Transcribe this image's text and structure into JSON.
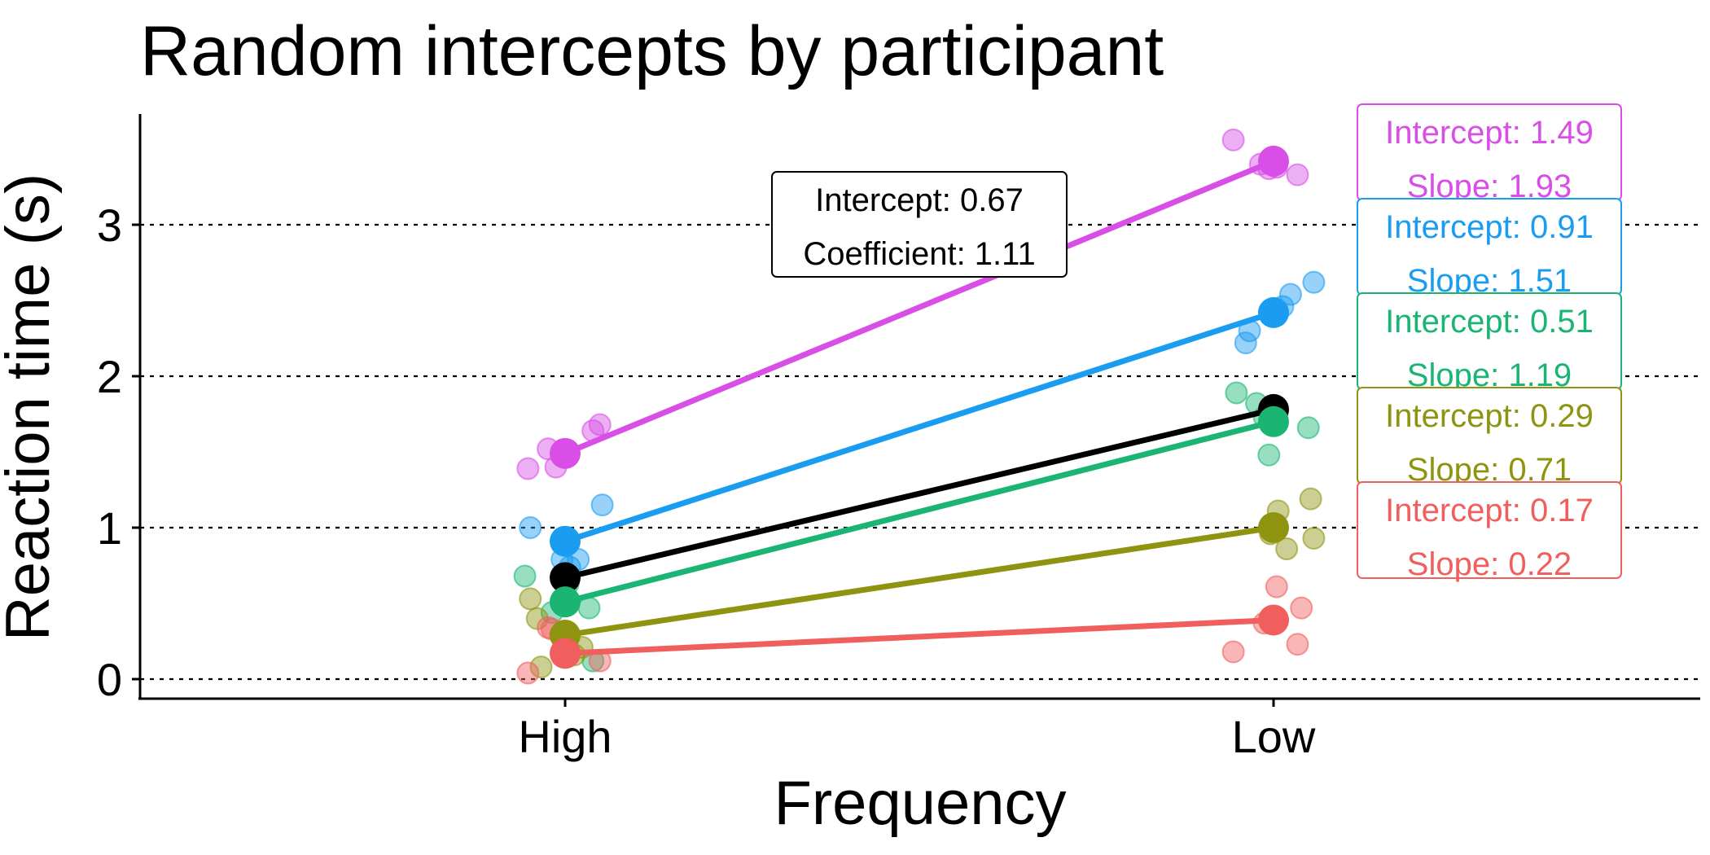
{
  "chart_data": {
    "type": "scatter",
    "title": "Random intercepts by participant",
    "xlabel": "Frequency",
    "ylabel": "Reaction time (s)",
    "categories": [
      "High",
      "Low"
    ],
    "yticks": [
      0,
      1,
      2,
      3
    ],
    "ylim": [
      -0.12,
      3.72
    ],
    "grid": "dashed horizontal",
    "legend": "none",
    "overall": {
      "color": "#000000",
      "values": [
        0.67,
        1.78
      ],
      "label_lines": [
        "Intercept: 0.67",
        "Coefficient: 1.11"
      ]
    },
    "series": [
      {
        "color": "#D84EE6",
        "values": [
          1.49,
          3.42
        ],
        "label_lines": [
          "Intercept: 1.49",
          "Slope: 1.93"
        ],
        "points": [
          [
            0,
            1.64
          ],
          [
            0,
            1.4
          ],
          [
            0,
            1.52
          ],
          [
            0,
            1.68
          ],
          [
            0,
            1.39
          ],
          [
            1,
            3.37
          ],
          [
            1,
            3.4
          ],
          [
            1,
            3.38
          ],
          [
            1,
            3.56
          ],
          [
            1,
            3.33
          ]
        ]
      },
      {
        "color": "#1A9CF0",
        "values": [
          0.91,
          2.42
        ],
        "label_lines": [
          "Intercept: 0.91",
          "Slope: 1.51"
        ],
        "points": [
          [
            0,
            1.0
          ],
          [
            0,
            1.15
          ],
          [
            0,
            0.74
          ],
          [
            0,
            0.79
          ],
          [
            0,
            0.79
          ],
          [
            1,
            2.62
          ],
          [
            1,
            2.3
          ],
          [
            1,
            2.22
          ],
          [
            1,
            2.46
          ],
          [
            1,
            2.54
          ]
        ]
      },
      {
        "color": "#1BB573",
        "values": [
          0.51,
          1.7
        ],
        "label_lines": [
          "Intercept: 0.51",
          "Slope: 1.19"
        ],
        "points": [
          [
            0,
            0.44
          ],
          [
            0,
            0.63
          ],
          [
            0,
            0.68
          ],
          [
            0,
            0.47
          ],
          [
            0,
            0.12
          ],
          [
            1,
            1.73
          ],
          [
            1,
            1.82
          ],
          [
            1,
            1.66
          ],
          [
            1,
            1.89
          ],
          [
            1,
            1.48
          ]
        ]
      },
      {
        "color": "#8F9410",
        "values": [
          0.29,
          1.0
        ],
        "label_lines": [
          "Intercept: 0.29",
          "Slope: 0.71"
        ],
        "points": [
          [
            0,
            0.08
          ],
          [
            0,
            0.4
          ],
          [
            0,
            0.16
          ],
          [
            0,
            0.21
          ],
          [
            0,
            0.53
          ],
          [
            1,
            1.19
          ],
          [
            1,
            1.11
          ],
          [
            1,
            0.86
          ],
          [
            1,
            0.96
          ],
          [
            1,
            0.93
          ]
        ]
      },
      {
        "color": "#F05F5E",
        "values": [
          0.17,
          0.39
        ],
        "label_lines": [
          "Intercept: 0.17",
          "Slope: 0.22"
        ],
        "points": [
          [
            0,
            0.34
          ],
          [
            0,
            0.12
          ],
          [
            0,
            0.04
          ],
          [
            0,
            0.29
          ],
          [
            0,
            0.33
          ],
          [
            1,
            0.61
          ],
          [
            1,
            0.18
          ],
          [
            1,
            0.23
          ],
          [
            1,
            0.47
          ],
          [
            1,
            0.37
          ]
        ]
      }
    ]
  }
}
